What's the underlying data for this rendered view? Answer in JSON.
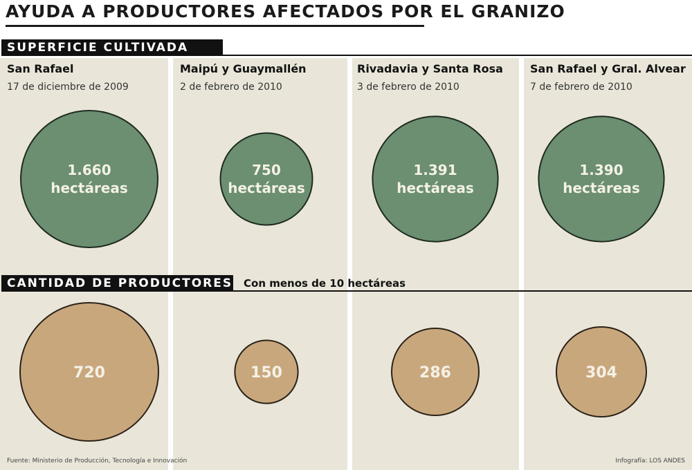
{
  "title": "AYUDA A PRODUCTORES AFECTADOS POR EL GRANIZO",
  "section_surface": "SUPERFICIE CULTIVADA",
  "section_producers": "CANTIDAD DE PRODUCTORES",
  "producers_note": "Con menos de 10 hectáreas",
  "unit_label": "hectáreas",
  "source": "Fuente: Ministerio de Producción, Tecnología e Innovación",
  "credit": "Infografía: LOS ANDES",
  "colors": {
    "surface": "#6b8f70",
    "producers": "#c9a77d",
    "panel": "#e9e6d9"
  },
  "chart_data": [
    {
      "type": "bubble",
      "name": "SUPERFICIE CULTIVADA",
      "categories": [
        "San Rafael",
        "Maipú y Guaymallén",
        "Rivadavia y Santa Rosa",
        "San Rafael y Gral. Alvear"
      ],
      "dates": [
        "17 de diciembre de 2009",
        "2 de febrero de 2010",
        "3 de febrero de 2010",
        "7 de febrero de 2010"
      ],
      "values": [
        1660,
        750,
        1391,
        1390
      ],
      "labels": [
        "1.660",
        "750",
        "1.391",
        "1.390"
      ],
      "unit": "hectáreas"
    },
    {
      "type": "bubble",
      "name": "CANTIDAD DE PRODUCTORES",
      "categories": [
        "San Rafael",
        "Maipú y Guaymallén",
        "Rivadavia y Santa Rosa",
        "San Rafael y Gral. Alvear"
      ],
      "values": [
        720,
        150,
        286,
        304
      ],
      "labels": [
        "720",
        "150",
        "286",
        "304"
      ]
    }
  ]
}
